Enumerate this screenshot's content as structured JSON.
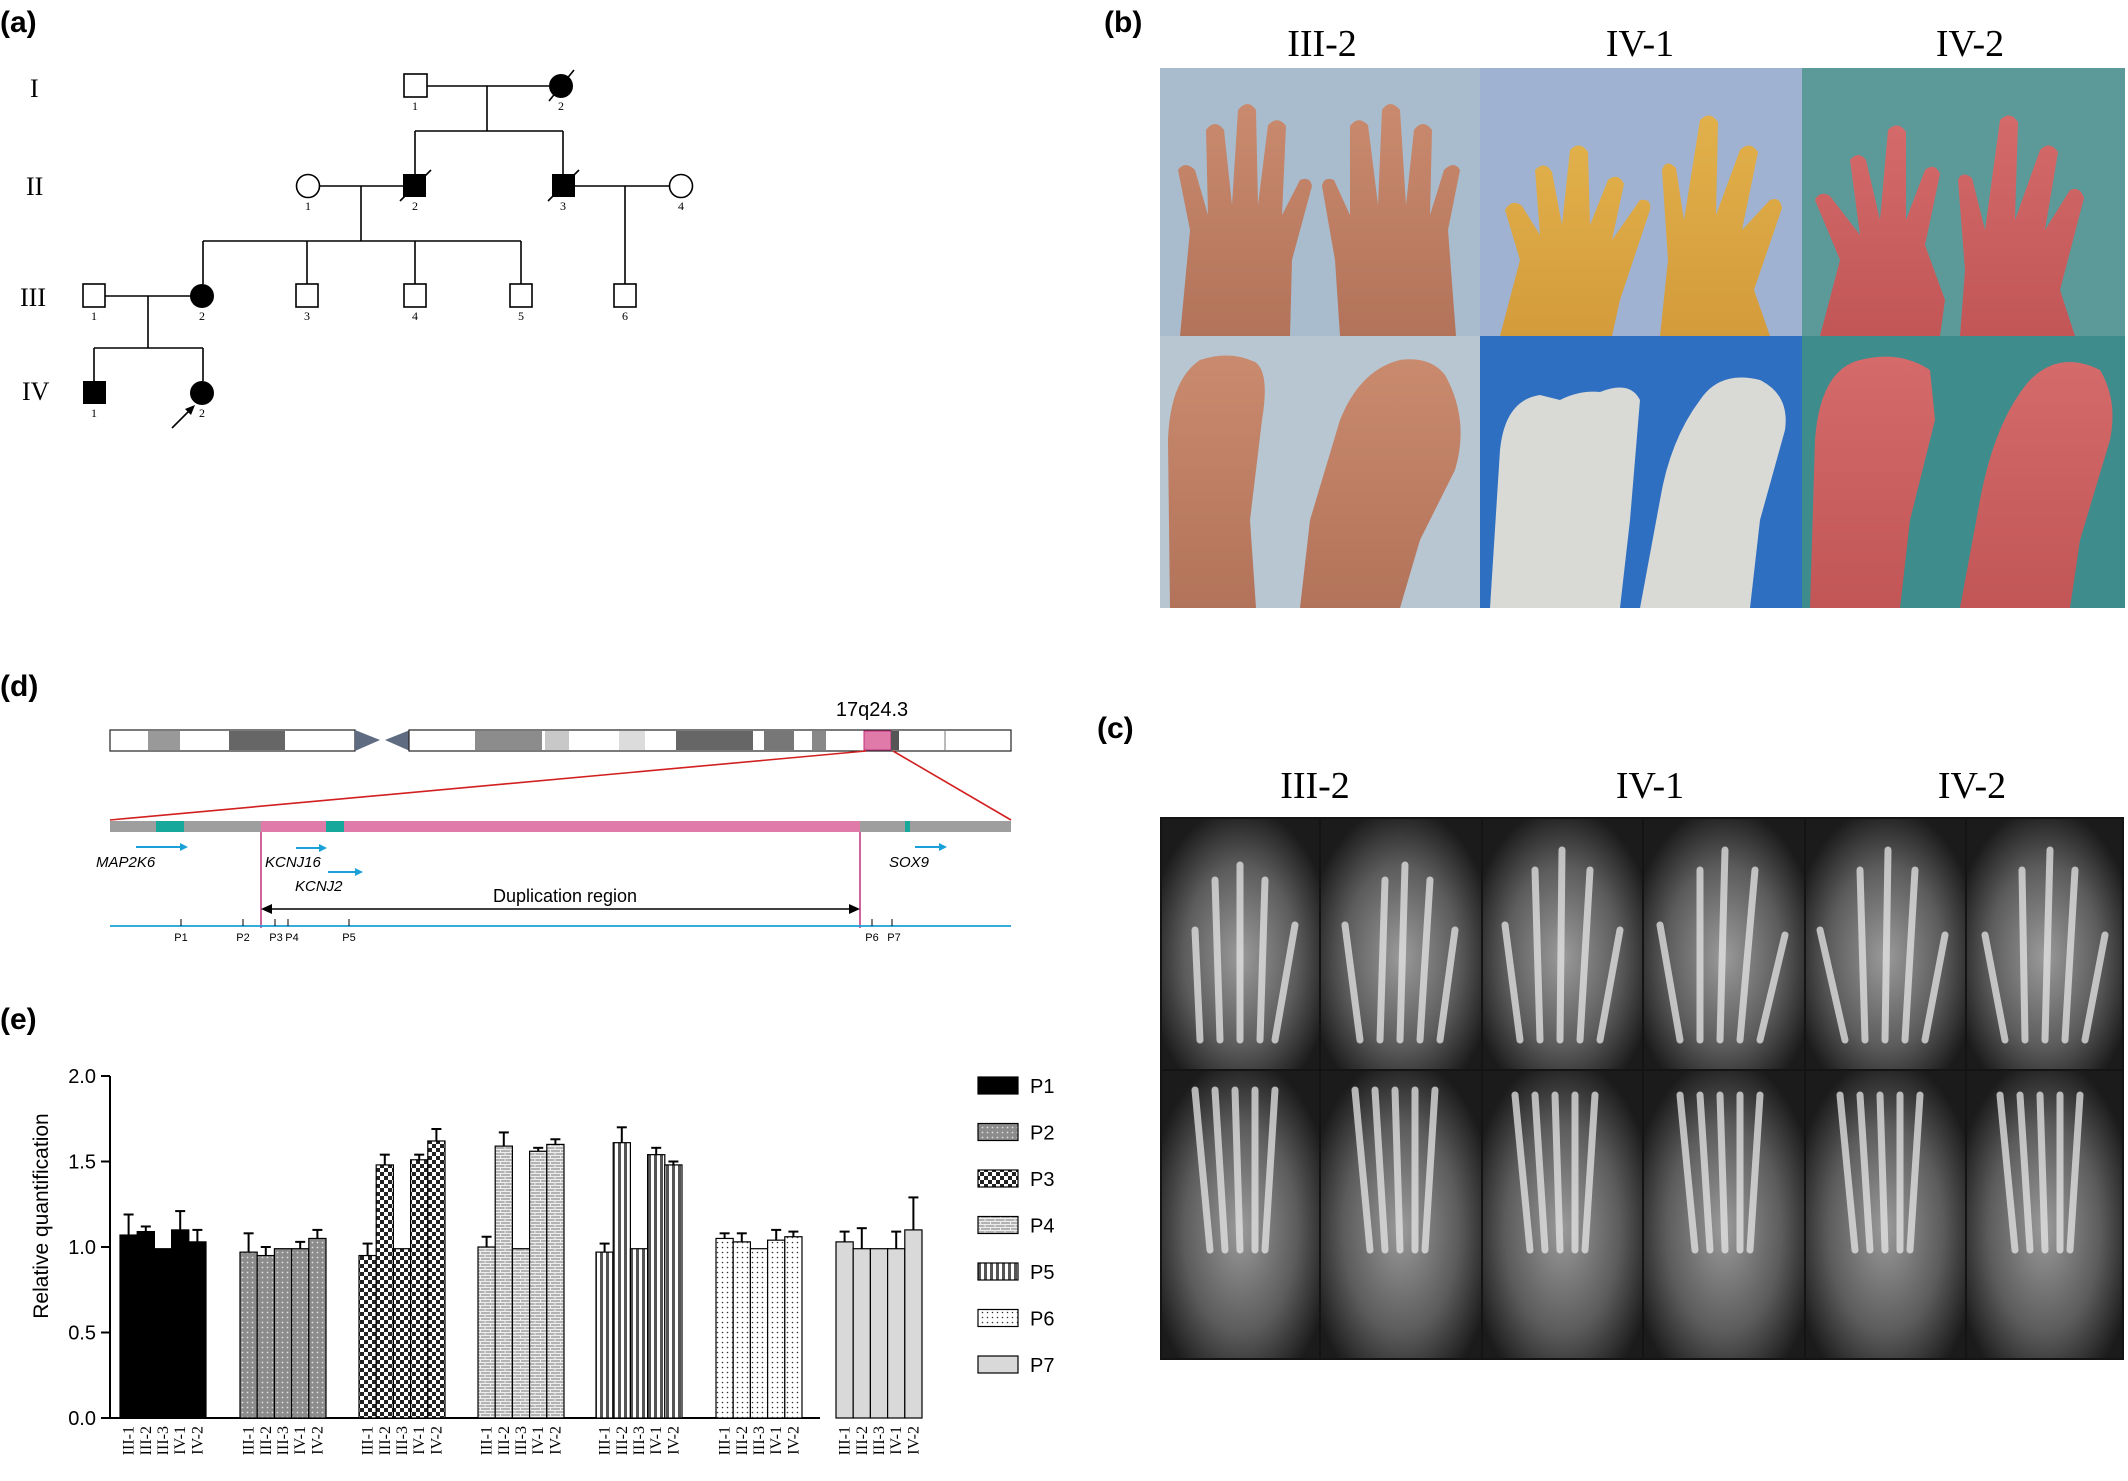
{
  "panels": {
    "a": {
      "label": "(a)",
      "generations": [
        "I",
        "II",
        "III",
        "IV"
      ],
      "proband_arrow": true,
      "individuals": [
        {
          "gen": "I",
          "num": "1",
          "sex": "male",
          "affected": false,
          "deceased": false
        },
        {
          "gen": "I",
          "num": "2",
          "sex": "female",
          "affected": true,
          "deceased": true
        },
        {
          "gen": "II",
          "num": "1",
          "sex": "female",
          "affected": false,
          "deceased": false
        },
        {
          "gen": "II",
          "num": "2",
          "sex": "male",
          "affected": true,
          "deceased": true
        },
        {
          "gen": "II",
          "num": "3",
          "sex": "male",
          "affected": true,
          "deceased": true
        },
        {
          "gen": "II",
          "num": "4",
          "sex": "female",
          "affected": false,
          "deceased": false
        },
        {
          "gen": "III",
          "num": "1",
          "sex": "male",
          "affected": false,
          "deceased": false
        },
        {
          "gen": "III",
          "num": "2",
          "sex": "female",
          "affected": true,
          "deceased": false
        },
        {
          "gen": "III",
          "num": "3",
          "sex": "male",
          "affected": false,
          "deceased": false
        },
        {
          "gen": "III",
          "num": "4",
          "sex": "male",
          "affected": false,
          "deceased": false
        },
        {
          "gen": "III",
          "num": "5",
          "sex": "male",
          "affected": false,
          "deceased": false
        },
        {
          "gen": "III",
          "num": "6",
          "sex": "male",
          "affected": false,
          "deceased": false
        },
        {
          "gen": "IV",
          "num": "1",
          "sex": "male",
          "affected": true,
          "deceased": false
        },
        {
          "gen": "IV",
          "num": "2",
          "sex": "female",
          "affected": true,
          "deceased": false,
          "proband": true
        }
      ]
    },
    "b": {
      "label": "(b)",
      "columns": [
        "III-2",
        "IV-1",
        "IV-2"
      ]
    },
    "c": {
      "label": "(c)",
      "columns": [
        "III-2",
        "IV-1",
        "IV-2"
      ]
    },
    "d": {
      "label": "(d)",
      "band": "17q24.3",
      "genes": [
        "MAP2K6",
        "KCNJ16",
        "KCNJ2",
        "SOX9"
      ],
      "duplication_label": "Duplication region",
      "primers": [
        "P1",
        "P2",
        "P3",
        "P4",
        "P5",
        "P6",
        "P7"
      ],
      "colors": {
        "duplication": "#e07aa9",
        "gene": "#16a89b",
        "arrow": "#1aa0d8",
        "zoom": "#d21f1f",
        "axis": "#1aa0d8"
      }
    },
    "e": {
      "label": "(e)"
    }
  },
  "chart_data": {
    "type": "bar",
    "ylabel": "Relative quantification",
    "ylim": [
      0,
      2.0
    ],
    "yticks": [
      "0.0",
      "0.5",
      "1.0",
      "1.5",
      "2.0"
    ],
    "categories": [
      "III-1",
      "III-2",
      "III-3",
      "IV-1",
      "IV-2"
    ],
    "series": [
      {
        "name": "P1",
        "values": [
          1.07,
          1.09,
          0.99,
          1.1,
          1.03
        ],
        "errors": [
          0.12,
          0.03,
          0.0,
          0.11,
          0.07
        ]
      },
      {
        "name": "P2",
        "values": [
          0.97,
          0.95,
          0.99,
          0.99,
          1.05
        ],
        "errors": [
          0.11,
          0.05,
          0.0,
          0.04,
          0.05
        ]
      },
      {
        "name": "P3",
        "values": [
          0.95,
          1.48,
          0.99,
          1.51,
          1.62
        ],
        "errors": [
          0.07,
          0.06,
          0.0,
          0.03,
          0.07
        ]
      },
      {
        "name": "P4",
        "values": [
          1.0,
          1.59,
          0.99,
          1.56,
          1.6
        ],
        "errors": [
          0.06,
          0.08,
          0.0,
          0.02,
          0.03
        ]
      },
      {
        "name": "P5",
        "values": [
          0.97,
          1.61,
          0.99,
          1.54,
          1.48
        ],
        "errors": [
          0.05,
          0.09,
          0.0,
          0.04,
          0.02
        ]
      },
      {
        "name": "P6",
        "values": [
          1.05,
          1.03,
          0.99,
          1.04,
          1.06
        ],
        "errors": [
          0.03,
          0.05,
          0.0,
          0.06,
          0.03
        ]
      },
      {
        "name": "P7",
        "values": [
          1.03,
          0.99,
          0.99,
          0.99,
          1.1
        ],
        "errors": [
          0.06,
          0.12,
          0.0,
          0.1,
          0.19
        ]
      }
    ],
    "legend_position": "right"
  }
}
